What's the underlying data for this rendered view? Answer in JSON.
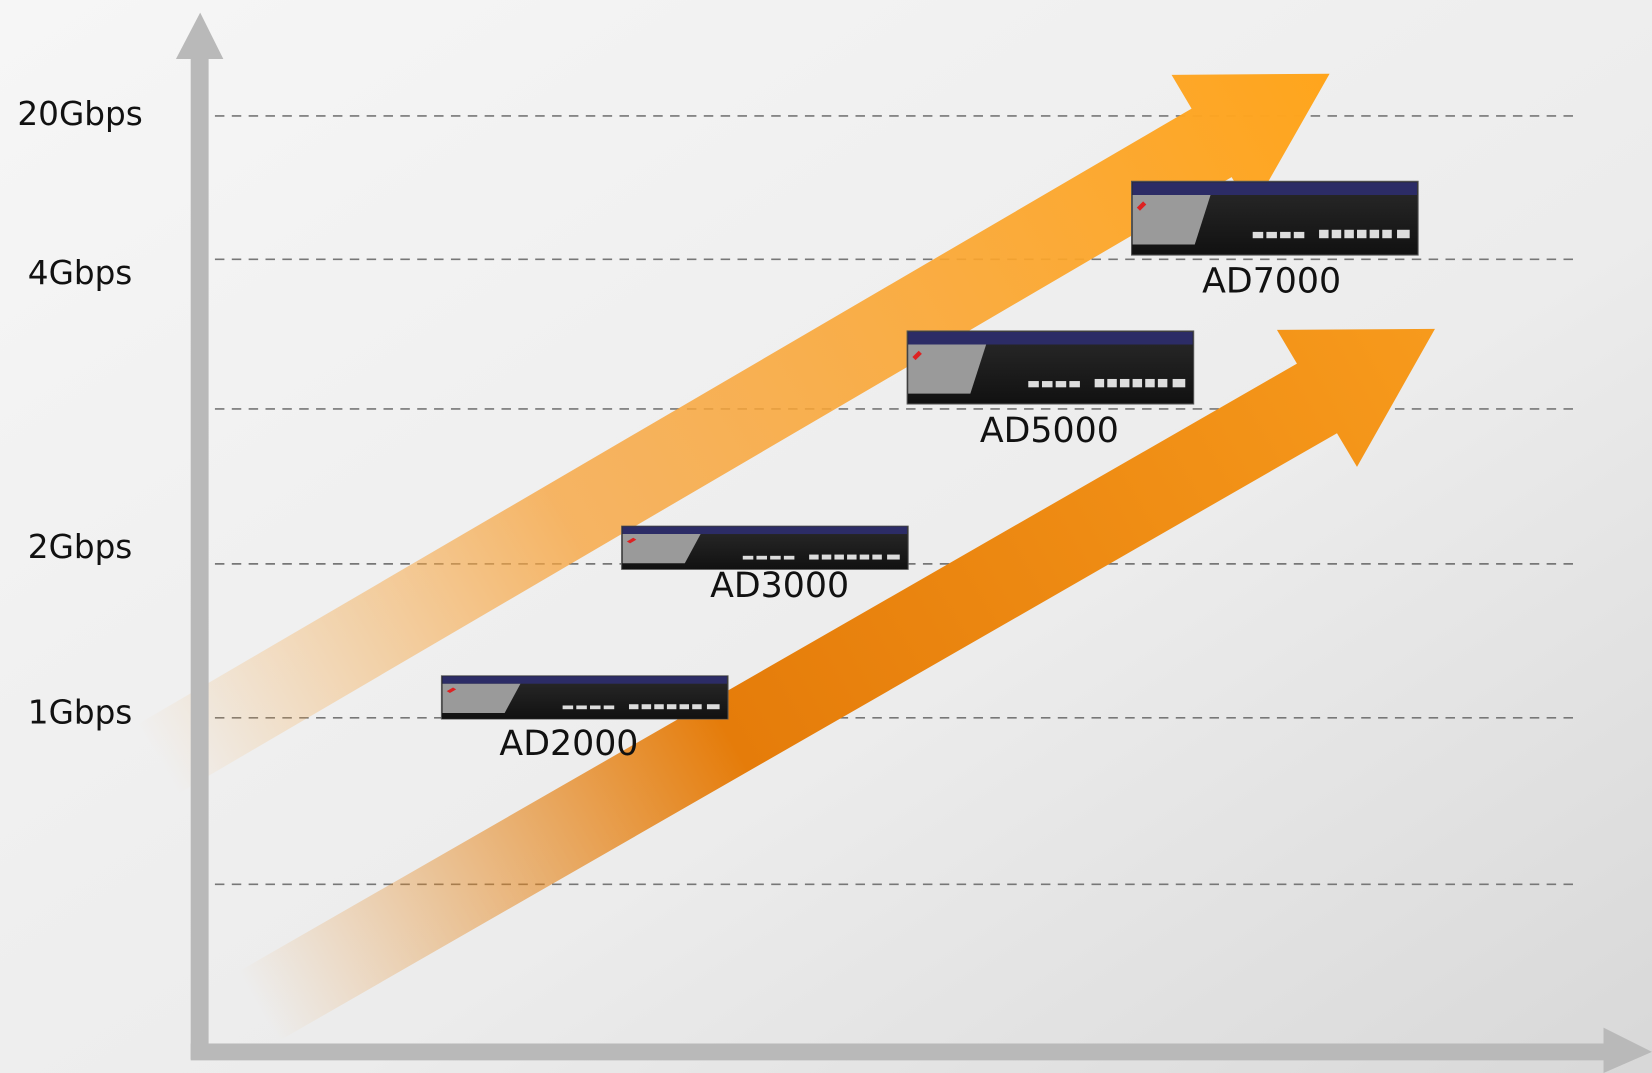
{
  "y_axis_labels": [
    "20Gbps",
    "4Gbps",
    "2Gbps",
    "1Gbps"
  ],
  "devices": [
    {
      "name": "AD2000"
    },
    {
      "name": "AD3000"
    },
    {
      "name": "AD5000"
    },
    {
      "name": "AD7000"
    }
  ]
}
